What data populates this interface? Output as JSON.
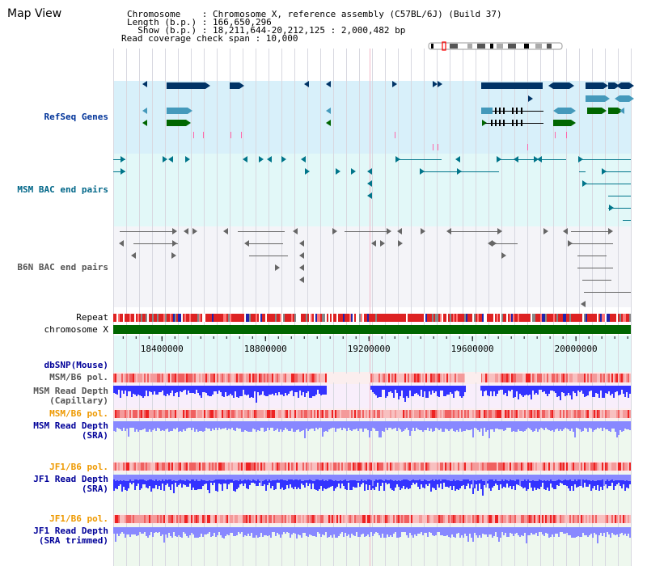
{
  "header": {
    "title": "Map View",
    "chromosome_line": "Chromosome    : Chromosome X, reference assembly (C57BL/6J) (Build 37)",
    "length_line": "Length (b.p.) : 166,650,296",
    "show_line": "  Show (b.p.) : 18,211,644-20,212,125 : 2,000,482 bp",
    "coverage_line": "Read coverage check span : 10,000"
  },
  "tracks": {
    "refseq": {
      "label": "RefSeq Genes",
      "color": "#003399"
    },
    "msm_bac": {
      "label": "MSM BAC end pairs",
      "color": "#006688"
    },
    "b6n_bac": {
      "label": "B6N BAC end pairs",
      "color": "#555555"
    },
    "repeat": {
      "label": "Repeat"
    },
    "chromosome": {
      "label": "chromosome X"
    },
    "dbsnp": {
      "label": "dbSNP(Mouse)",
      "color": "#000099"
    },
    "msm_pol_1": {
      "label": "MSM/B6 pol.",
      "color": "#555555"
    },
    "msm_depth_cap": {
      "label": "MSM Read Depth\n(Capillary)",
      "color": "#555555"
    },
    "msm_pol_2": {
      "label": "MSM/B6 pol.",
      "color": "#ee9900"
    },
    "msm_depth_sra": {
      "label": "MSM Read Depth\n(SRA)",
      "color": "#000099"
    },
    "jf1_pol_1": {
      "label": "JF1/B6 pol.",
      "color": "#ee9900"
    },
    "jf1_depth_sra": {
      "label": "JF1 Read Depth\n(SRA)",
      "color": "#000099"
    },
    "jf1_pol_2": {
      "label": "JF1/B6 pol.",
      "color": "#ee9900"
    },
    "jf1_depth_trim": {
      "label": "JF1 Read Depth\n(SRA trimmed)",
      "color": "#000099"
    }
  },
  "axis": {
    "range_start": 18211644,
    "range_end": 20212125,
    "ticks": [
      {
        "value": 18400000,
        "label": "18400000"
      },
      {
        "value": 18800000,
        "label": "18800000"
      },
      {
        "value": 19200000,
        "label": "19200000"
      },
      {
        "value": 19600000,
        "label": "19600000"
      },
      {
        "value": 20000000,
        "label": "20000000"
      }
    ]
  },
  "colors": {
    "refseq_bg": "#d8f0fa",
    "msm_bg": "#e2f8f8",
    "b6n_bg": "#f4f4f8",
    "snp_bg": "#e2f8f8",
    "pol_bg": "#fbeeee",
    "depth_cap_bg": "#f8eefb",
    "depth_sra_bg": "#eef8ee",
    "gene_dark": "#003366",
    "gene_mid": "#4499bb",
    "gene_green": "#006600",
    "pol_red": "#ee3333",
    "depth_blue": "#3333ff",
    "depth_light": "#8888ff",
    "chrom_green": "#006600"
  }
}
